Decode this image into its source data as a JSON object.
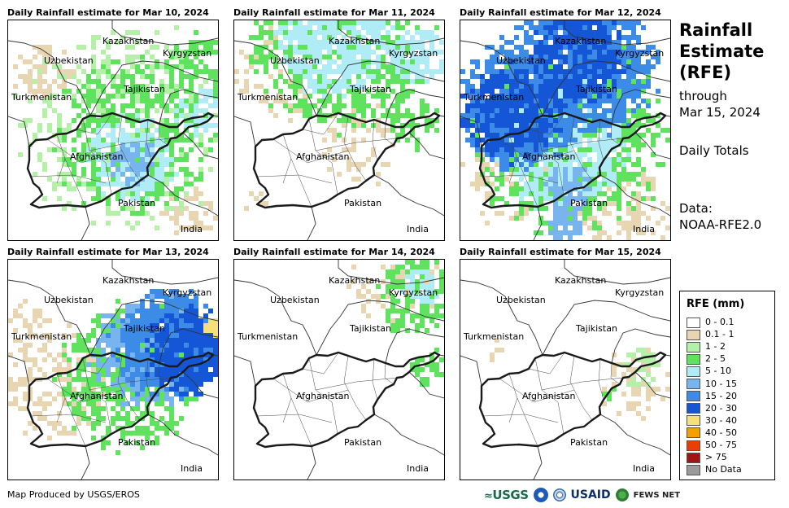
{
  "panels": [
    {
      "title": "Daily Rainfall estimate for Mar 10, 2024",
      "pattern": "widespread-moderate"
    },
    {
      "title": "Daily Rainfall estimate for Mar 11, 2024",
      "pattern": "north-light"
    },
    {
      "title": "Daily Rainfall estimate for Mar 12, 2024",
      "pattern": "heavy-north-west"
    },
    {
      "title": "Daily Rainfall estimate for Mar 13, 2024",
      "pattern": "heavy-east"
    },
    {
      "title": "Daily Rainfall estimate for Mar 14, 2024",
      "pattern": "northeast-light"
    },
    {
      "title": "Daily Rainfall estimate for Mar 15, 2024",
      "pattern": "dry"
    }
  ],
  "map_labels": {
    "kazakhstan": "Kazakhstan",
    "kyrgyzstan": "Kyrgyzstan",
    "uzbekistan": "Uzbekistan",
    "tajikistan": "Tajikistan",
    "turkmenistan": "Turkmenistan",
    "afghanistan": "Afghanistan",
    "pakistan": "Pakistan",
    "india": "India"
  },
  "header": {
    "title_line1": "Rainfall",
    "title_line2": "Estimate",
    "title_line3": "(RFE)",
    "through": "through",
    "date": "Mar 15, 2024",
    "totals": "Daily Totals",
    "data_label": "Data:",
    "data_source": "NOAA-RFE2.0"
  },
  "legend": {
    "title": "RFE (mm)",
    "items": [
      {
        "label": "0 - 0.1",
        "color": "#ffffff"
      },
      {
        "label": "0.1 - 1",
        "color": "#e8d6b3"
      },
      {
        "label": "1 - 2",
        "color": "#b4f0a8"
      },
      {
        "label": "2 - 5",
        "color": "#5fe35f"
      },
      {
        "label": "5 - 10",
        "color": "#b0ecf5"
      },
      {
        "label": "10 - 15",
        "color": "#78b4ee"
      },
      {
        "label": "15 - 20",
        "color": "#3c8be6"
      },
      {
        "label": "20 - 30",
        "color": "#1456d6"
      },
      {
        "label": "30 - 40",
        "color": "#f5e07a"
      },
      {
        "label": "40 - 50",
        "color": "#f5a000"
      },
      {
        "label": "50 - 75",
        "color": "#e84000"
      },
      {
        "label": "> 75",
        "color": "#a01414"
      },
      {
        "label": "No Data",
        "color": "#9a9a9a"
      }
    ]
  },
  "footer": {
    "credit": "Map Produced by USGS/EROS",
    "usgs": "USGS",
    "usaid": "USAID",
    "fews": "FEWS NET"
  }
}
